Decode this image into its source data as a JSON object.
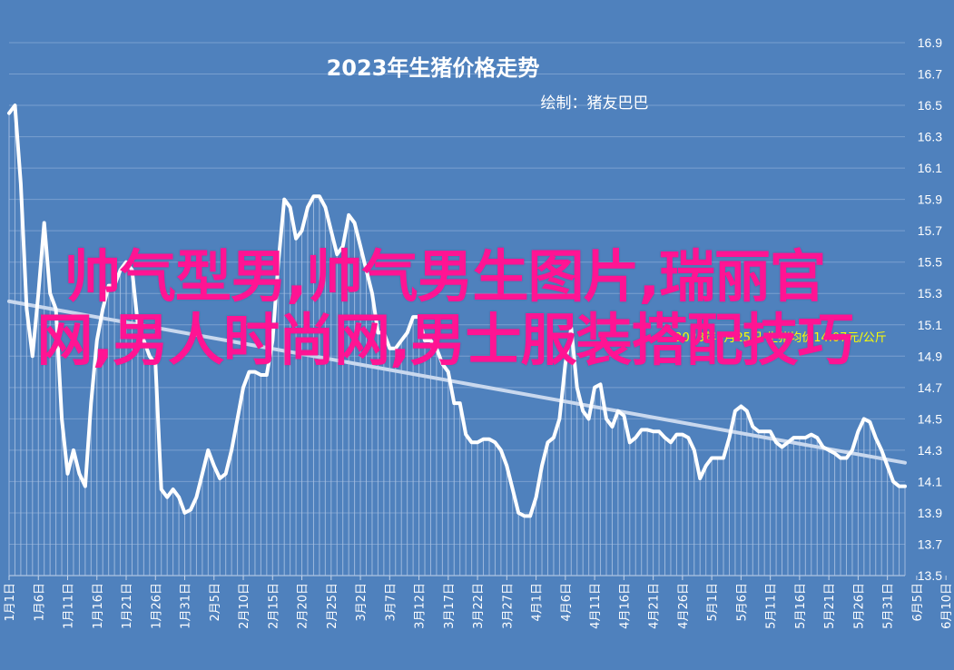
{
  "chart_data": {
    "type": "line",
    "title": "2023年生猪价格走势",
    "subtitle": "绘制：猪友巴巴",
    "annotation": "2023年6月25日 生猪均价14.07元/公斤",
    "y_range": [
      13.5,
      16.9
    ],
    "y_ticks": [
      "16.9",
      "16.7",
      "16.5",
      "16.3",
      "16.1",
      "15.9",
      "15.7",
      "15.5",
      "15.3",
      "15.1",
      "14.9",
      "14.7",
      "14.5",
      "14.3",
      "14.1",
      "13.9",
      "13.7",
      "13.5"
    ],
    "x_tick_labels": [
      "1月1日",
      "1月6日",
      "1月11日",
      "1月16日",
      "1月21日",
      "1月26日",
      "1月31日",
      "2月5日",
      "2月10日",
      "2月15日",
      "2月20日",
      "2月25日",
      "3月2日",
      "3月7日",
      "3月12日",
      "3月17日",
      "3月22日",
      "3月27日",
      "4月1日",
      "4月6日",
      "4月11日",
      "4月16日",
      "4月21日",
      "4月26日",
      "5月1日",
      "5月6日",
      "5月11日",
      "5月16日",
      "5月21日",
      "5月26日",
      "5月31日",
      "6月5日",
      "6月10日",
      "6月15日",
      "6月20日",
      "6月25日"
    ],
    "series": [
      {
        "values": [
          16.45,
          16.5,
          16.0,
          15.2,
          14.9,
          15.3,
          15.75,
          15.3,
          15.2,
          14.5,
          14.15,
          14.3,
          14.15,
          14.07,
          14.6,
          15.0,
          15.2,
          15.35,
          15.35,
          15.45,
          15.5,
          15.45,
          15.1,
          15.0,
          14.9,
          14.85,
          14.05,
          14.0,
          14.05,
          14.0,
          13.9,
          13.92,
          14.0,
          14.15,
          14.3,
          14.2,
          14.12,
          14.15,
          14.3,
          14.5,
          14.7,
          14.8,
          14.8,
          14.78,
          14.78,
          15.0,
          15.5,
          15.9,
          15.85,
          15.65,
          15.7,
          15.85,
          15.92,
          15.92,
          15.85,
          15.7,
          15.55,
          15.6,
          15.8,
          15.75,
          15.6,
          15.45,
          15.3,
          15.05,
          15.05,
          14.95,
          14.95,
          15.0,
          15.05,
          15.15,
          15.15,
          15.0,
          15.0,
          14.95,
          14.85,
          14.8,
          14.6,
          14.6,
          14.4,
          14.35,
          14.35,
          14.37,
          14.37,
          14.35,
          14.3,
          14.2,
          14.05,
          13.9,
          13.88,
          13.88,
          14.0,
          14.2,
          14.35,
          14.38,
          14.5,
          14.85,
          15.08,
          14.7,
          14.55,
          14.5,
          14.7,
          14.72,
          14.5,
          14.45,
          14.55,
          14.52,
          14.35,
          14.38,
          14.43,
          14.43,
          14.42,
          14.42,
          14.38,
          14.35,
          14.4,
          14.4,
          14.38,
          14.3,
          14.12,
          14.2,
          14.25,
          14.25,
          14.25,
          14.38,
          14.55,
          14.58,
          14.55,
          14.45,
          14.42,
          14.42,
          14.42,
          14.35,
          14.32,
          14.35,
          14.38,
          14.38,
          14.38,
          14.4,
          14.38,
          14.32,
          14.3,
          14.28,
          14.25,
          14.25,
          14.3,
          14.42,
          14.5,
          14.48,
          14.38,
          14.3,
          14.2,
          14.1,
          14.07,
          14.07
        ]
      },
      {
        "trend": [
          15.25,
          14.22
        ]
      }
    ],
    "grid": true,
    "legend": "none"
  },
  "overlay_text": "帅气型男,帅气男生图片,瑞丽官网,男人时尚网,男士服装搭配技巧"
}
